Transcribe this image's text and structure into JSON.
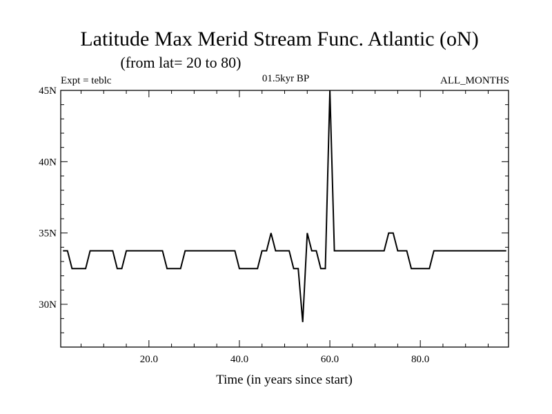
{
  "chart_data": {
    "type": "line",
    "title": "Latitude Max Merid Stream Func. Atlantic (oN)",
    "subtitle": "(from lat= 20 to 80)",
    "left_label": "Expt = teblc",
    "center_label": "01.5kyr BP",
    "right_label": "ALL_MONTHS",
    "xlabel": "Time (in years since start)",
    "ylabel": "",
    "xlim": [
      0.5,
      99.5
    ],
    "ylim": [
      27,
      45
    ],
    "x_ticks": [
      20,
      40,
      60,
      80
    ],
    "x_tick_labels": [
      "20.0",
      "40.0",
      "60.0",
      "80.0"
    ],
    "y_ticks": [
      30,
      35,
      40,
      45
    ],
    "y_tick_labels": [
      "30N",
      "35N",
      "40N",
      "45N"
    ],
    "series": [
      {
        "color": "#000000",
        "x": [
          1,
          2,
          3,
          4,
          5,
          6,
          7,
          8,
          9,
          10,
          11,
          12,
          13,
          14,
          15,
          16,
          17,
          18,
          19,
          20,
          21,
          22,
          23,
          24,
          25,
          26,
          27,
          28,
          29,
          30,
          31,
          32,
          33,
          34,
          35,
          36,
          37,
          38,
          39,
          40,
          41,
          42,
          43,
          44,
          45,
          46,
          47,
          48,
          49,
          50,
          51,
          52,
          53,
          54,
          55,
          56,
          57,
          58,
          59,
          60,
          61,
          62,
          63,
          64,
          65,
          66,
          67,
          68,
          69,
          70,
          71,
          72,
          73,
          74,
          75,
          76,
          77,
          78,
          79,
          80,
          81,
          82,
          83,
          84,
          85,
          86,
          87,
          88,
          89,
          90,
          91,
          92,
          93,
          94,
          95,
          96,
          97,
          98,
          99
        ],
        "y": [
          33.75,
          33.75,
          32.5,
          32.5,
          32.5,
          32.5,
          33.75,
          33.75,
          33.75,
          33.75,
          33.75,
          33.75,
          32.5,
          32.5,
          33.75,
          33.75,
          33.75,
          33.75,
          33.75,
          33.75,
          33.75,
          33.75,
          33.75,
          32.5,
          32.5,
          32.5,
          32.5,
          33.75,
          33.75,
          33.75,
          33.75,
          33.75,
          33.75,
          33.75,
          33.75,
          33.75,
          33.75,
          33.75,
          33.75,
          32.5,
          32.5,
          32.5,
          32.5,
          32.5,
          33.75,
          33.75,
          35,
          33.75,
          33.75,
          33.75,
          33.75,
          32.5,
          32.5,
          28.75,
          35,
          33.75,
          33.75,
          32.5,
          32.5,
          45,
          33.75,
          33.75,
          33.75,
          33.75,
          33.75,
          33.75,
          33.75,
          33.75,
          33.75,
          33.75,
          33.75,
          33.75,
          35,
          35,
          33.75,
          33.75,
          33.75,
          32.5,
          32.5,
          32.5,
          32.5,
          32.5,
          33.75,
          33.75,
          33.75,
          33.75,
          33.75,
          33.75,
          33.75,
          33.75,
          33.75,
          33.75,
          33.75,
          33.75,
          33.75,
          33.75,
          33.75,
          33.75,
          33.75
        ]
      }
    ]
  }
}
